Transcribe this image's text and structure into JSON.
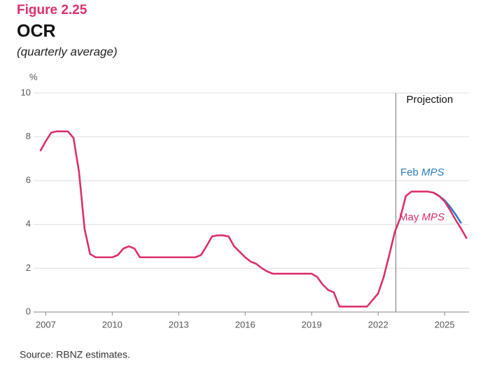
{
  "chart_data": {
    "type": "line",
    "figure_label": "Figure 2.25",
    "title": "OCR",
    "subtitle": "(quarterly average)",
    "y_unit": "%",
    "source": "Source: RBNZ estimates.",
    "annotation": {
      "text": "Projection",
      "x": 2022.8
    },
    "xlim": [
      2006.45,
      2026.1
    ],
    "xticks": [
      2007,
      2010,
      2013,
      2016,
      2019,
      2022,
      2025
    ],
    "ylim": [
      0,
      10
    ],
    "yticks": [
      0,
      2,
      4,
      6,
      8,
      10
    ],
    "grid": true,
    "series": [
      {
        "name": "Feb MPS",
        "color": "#2b7bbf",
        "x": [
          2024.5,
          2024.75,
          2025.0,
          2025.25,
          2025.5,
          2025.75
        ],
        "values": [
          5.45,
          5.3,
          5.1,
          4.8,
          4.45,
          4.05
        ]
      },
      {
        "name": "May MPS",
        "color": "#dc2f6e",
        "x": [
          2006.75,
          2007.0,
          2007.25,
          2007.5,
          2007.75,
          2008.0,
          2008.25,
          2008.5,
          2008.75,
          2009.0,
          2009.25,
          2009.5,
          2009.75,
          2010.0,
          2010.25,
          2010.5,
          2010.75,
          2011.0,
          2011.25,
          2011.5,
          2011.75,
          2012.0,
          2012.25,
          2012.5,
          2012.75,
          2013.0,
          2013.25,
          2013.5,
          2013.75,
          2014.0,
          2014.25,
          2014.5,
          2014.75,
          2015.0,
          2015.25,
          2015.5,
          2015.75,
          2016.0,
          2016.25,
          2016.5,
          2016.75,
          2017.0,
          2017.25,
          2017.5,
          2017.75,
          2018.0,
          2018.25,
          2018.5,
          2018.75,
          2019.0,
          2019.25,
          2019.5,
          2019.75,
          2020.0,
          2020.25,
          2020.5,
          2020.75,
          2021.0,
          2021.25,
          2021.5,
          2021.75,
          2022.0,
          2022.25,
          2022.5,
          2022.75,
          2023.0,
          2023.25,
          2023.5,
          2023.75,
          2024.0,
          2024.25,
          2024.5,
          2024.75,
          2025.0,
          2025.25,
          2025.5,
          2025.75,
          2026.0
        ],
        "values": [
          7.35,
          7.8,
          8.2,
          8.25,
          8.25,
          8.25,
          7.95,
          6.4,
          3.8,
          2.65,
          2.5,
          2.5,
          2.5,
          2.5,
          2.6,
          2.9,
          3.0,
          2.9,
          2.5,
          2.5,
          2.5,
          2.5,
          2.5,
          2.5,
          2.5,
          2.5,
          2.5,
          2.5,
          2.5,
          2.6,
          3.0,
          3.45,
          3.5,
          3.5,
          3.45,
          3.0,
          2.75,
          2.5,
          2.3,
          2.2,
          2.0,
          1.85,
          1.75,
          1.75,
          1.75,
          1.75,
          1.75,
          1.75,
          1.75,
          1.75,
          1.6,
          1.25,
          1.0,
          0.9,
          0.25,
          0.25,
          0.25,
          0.25,
          0.25,
          0.25,
          0.55,
          0.85,
          1.6,
          2.6,
          3.65,
          4.3,
          5.3,
          5.5,
          5.5,
          5.5,
          5.5,
          5.45,
          5.3,
          5.05,
          4.65,
          4.2,
          3.8,
          3.35
        ]
      }
    ]
  }
}
